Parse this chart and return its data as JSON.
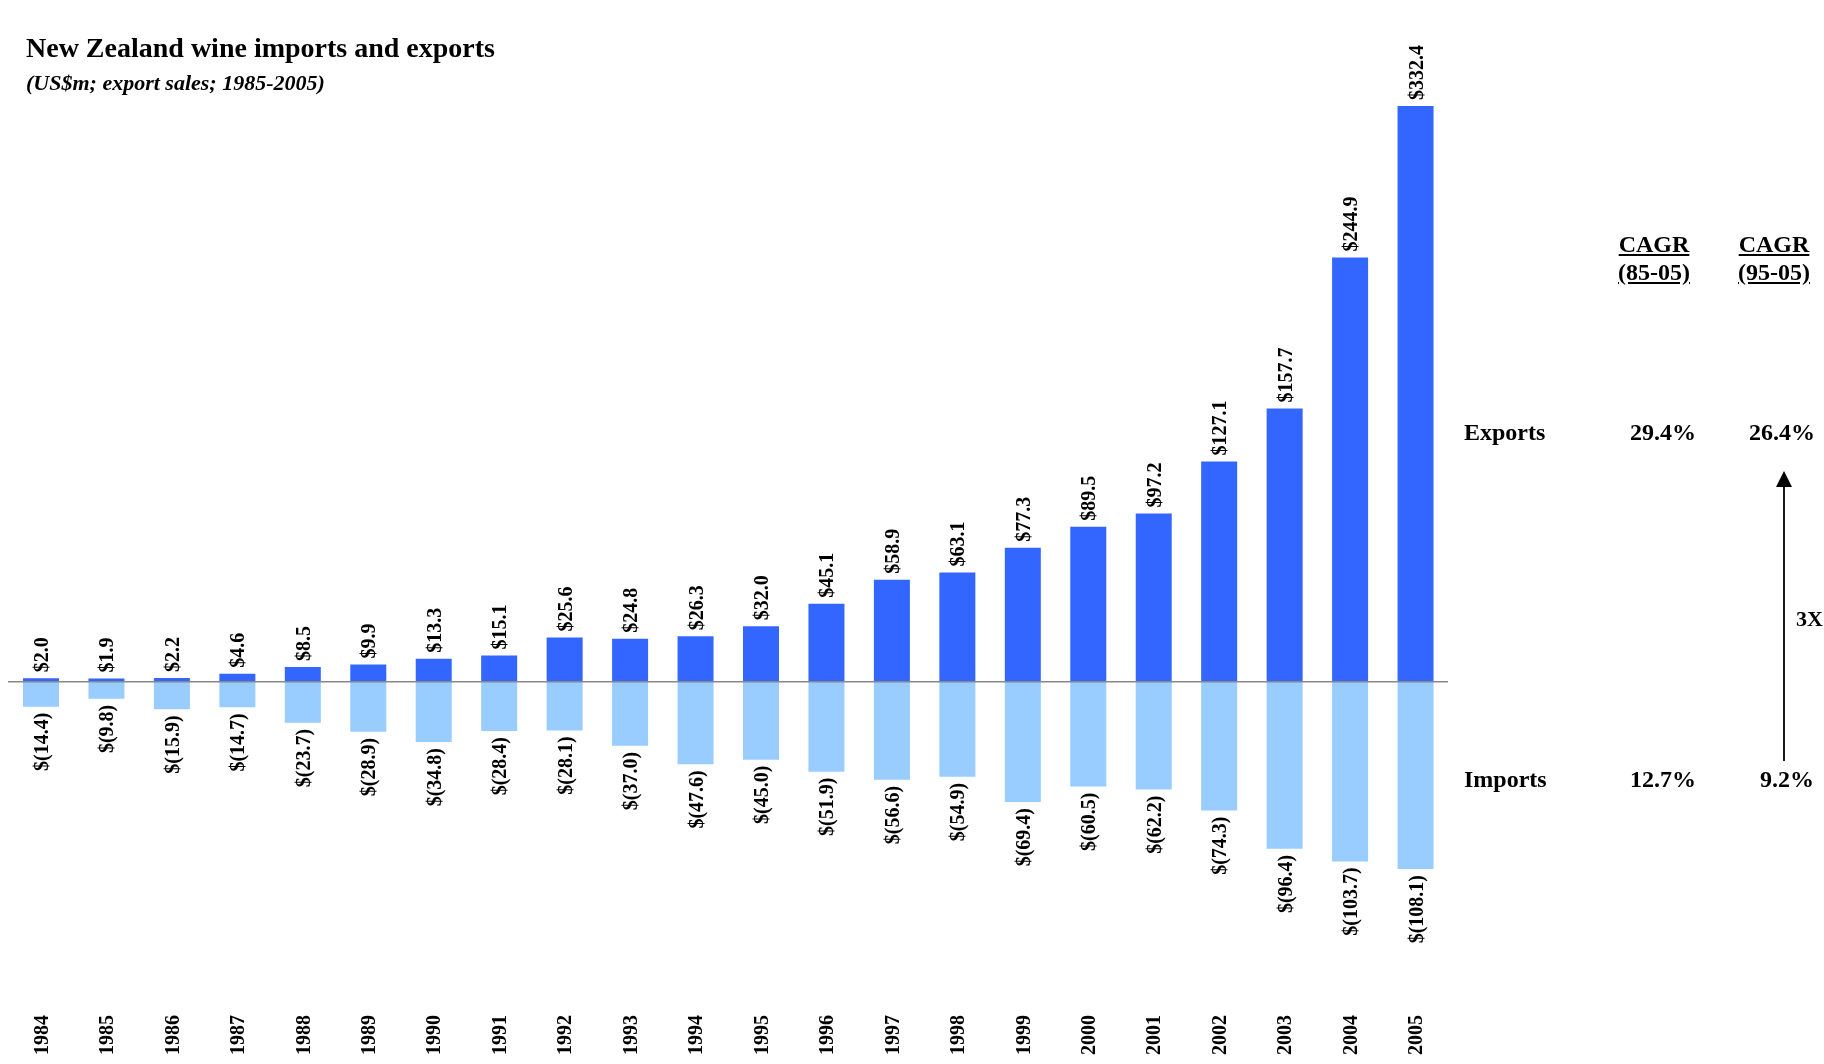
{
  "chart_data": {
    "type": "bar",
    "title": "New Zealand wine imports and exports",
    "subtitle": "(US$m; export sales; 1985-2005)",
    "categories": [
      "1984",
      "1985",
      "1986",
      "1987",
      "1988",
      "1989",
      "1990",
      "1991",
      "1992",
      "1993",
      "1994",
      "1995",
      "1996",
      "1997",
      "1998",
      "1999",
      "2000",
      "2001",
      "2002",
      "2003",
      "2004",
      "2005"
    ],
    "stacked": true,
    "tick_labels": "x",
    "series": [
      {
        "color": "#3366ff",
        "values": [
          2.0,
          1.9,
          2.2,
          4.6,
          8.5,
          9.9,
          13.3,
          15.1,
          25.6,
          24.8,
          26.3,
          32.0,
          45.1,
          58.9,
          63.1,
          77.3,
          89.5,
          97.2,
          127.1,
          157.7,
          244.9,
          332.4
        ],
        "value_labels": [
          "$2.0",
          "$1.9",
          "$2.2",
          "$4.6",
          "$8.5",
          "$9.9",
          "$13.3",
          "$15.1",
          "$25.6",
          "$24.8",
          "$26.3",
          "$32.0",
          "$45.1",
          "$58.9",
          "$63.1",
          "$77.3",
          "$89.5",
          "$97.2",
          "$127.1",
          "$157.7",
          "$244.9",
          "$332.4"
        ]
      },
      {
        "color": "#99ccff",
        "values": [
          -14.4,
          -9.8,
          -15.9,
          -14.7,
          -23.7,
          -28.9,
          -34.8,
          -28.4,
          -28.1,
          -37.0,
          -47.6,
          -45.0,
          -51.9,
          -56.6,
          -54.9,
          -69.4,
          -60.5,
          -62.2,
          -74.3,
          -96.4,
          -103.7,
          -108.1
        ],
        "value_labels": [
          "$(14.4)",
          "$(9.8)",
          "$(15.9)",
          "$(14.7)",
          "$(23.7)",
          "$(28.9)",
          "$(34.8)",
          "$(28.4)",
          "$(28.1)",
          "$(37.0)",
          "$(47.6)",
          "$(45.0)",
          "$(51.9)",
          "$(56.6)",
          "$(54.9)",
          "$(69.4)",
          "$(60.5)",
          "$(62.2)",
          "$(74.3)",
          "$(96.4)",
          "$(103.7)",
          "$(108.1)"
        ]
      }
    ],
    "annotations": [
      "CAGR\n(85-05)",
      "CAGR\n(95-05)",
      "Exports",
      "29.4%",
      "26.4%",
      "Imports",
      "12.7%",
      "9.2%",
      "3X"
    ]
  }
}
